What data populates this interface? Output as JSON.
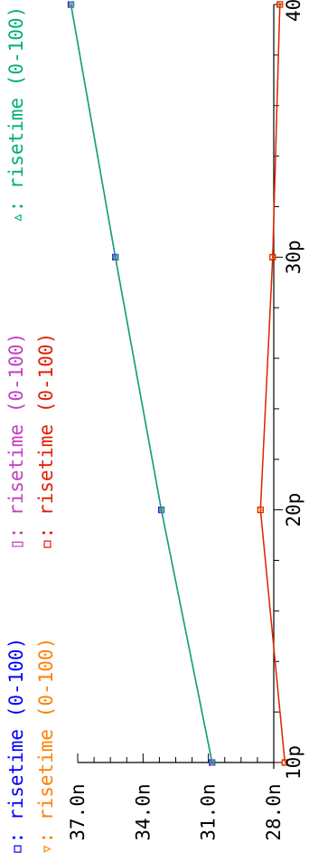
{
  "chart_data": {
    "type": "line",
    "x_ticks": [
      "10p",
      "20p",
      "30p",
      "40p"
    ],
    "y_ticks": [
      "28.0n",
      "31.0n",
      "34.0n",
      "37.0n"
    ],
    "xlim": [
      10,
      40
    ],
    "ylim": [
      28,
      37
    ],
    "x": [
      10,
      20,
      30,
      40
    ],
    "series": [
      {
        "name": "risetime (0-100)",
        "marker": "square",
        "color": "#0000ff",
        "values": [
          30.83,
          33.16,
          35.27,
          37.31
        ]
      },
      {
        "name": "risetime (0-100)",
        "marker": "bar",
        "color": "#c040c0",
        "values": [
          30.83,
          33.16,
          35.27,
          37.31
        ]
      },
      {
        "name": "risetime (0-100)",
        "marker": "triangle",
        "color": "#00b070",
        "values": [
          30.83,
          33.16,
          35.27,
          37.31
        ]
      },
      {
        "name": "risetime (0-100)",
        "marker": "triangle-down",
        "color": "#ff8000",
        "values": [
          27.49,
          28.61,
          28.05,
          27.72
        ]
      },
      {
        "name": "risetime (0-100)",
        "marker": "square",
        "color": "#e02000",
        "values": [
          27.49,
          28.61,
          28.05,
          27.72
        ]
      }
    ]
  }
}
